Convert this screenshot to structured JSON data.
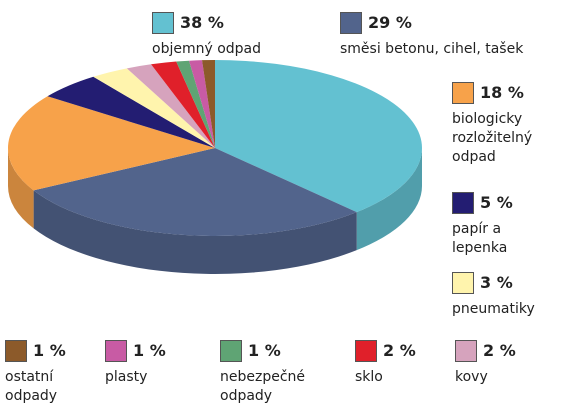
{
  "chart_data": {
    "type": "pie",
    "categories": [
      "objemný odpad",
      "směsi betonu, cihel, tašek",
      "biologicky rozložitelný odpad",
      "papír a lepenka",
      "pneumatiky",
      "kovy",
      "sklo",
      "nebezpečné odpady",
      "plasty",
      "ostatní odpady"
    ],
    "values": [
      38,
      29,
      18,
      5,
      3,
      2,
      2,
      1,
      1,
      1
    ],
    "value_labels": [
      "38 %",
      "29 %",
      "18 %",
      "5 %",
      "3 %",
      "2 %",
      "2 %",
      "1 %",
      "1 %",
      "1 %"
    ],
    "colors": [
      "#63c1d1",
      "#52648c",
      "#f7a24a",
      "#231d72",
      "#fff4ad",
      "#d6a3bd",
      "#e0202a",
      "#5fa474",
      "#c85ba4",
      "#8c5a2a"
    ]
  }
}
